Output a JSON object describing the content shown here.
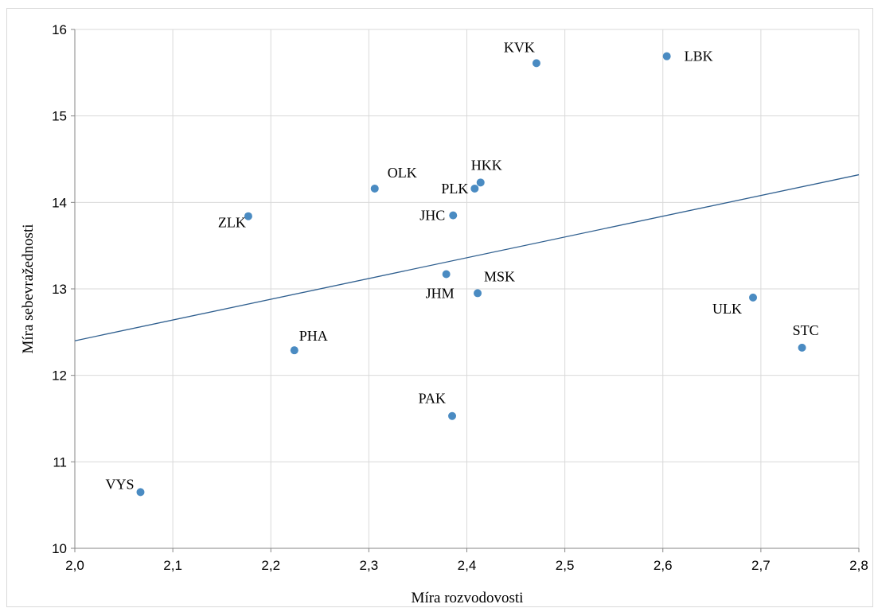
{
  "chart_data": {
    "type": "scatter",
    "title": "",
    "xlabel": "Míra rozvodovosti",
    "ylabel": "Míra sebevražednosti",
    "xlim": [
      2.0,
      2.8
    ],
    "ylim": [
      10,
      16
    ],
    "x_ticks": [
      2.0,
      2.1,
      2.2,
      2.3,
      2.4,
      2.5,
      2.6,
      2.7,
      2.8
    ],
    "x_tick_labels": [
      "2,0",
      "2,1",
      "2,2",
      "2,3",
      "2,4",
      "2,5",
      "2,6",
      "2,7",
      "2,8"
    ],
    "y_ticks": [
      10,
      11,
      12,
      13,
      14,
      15,
      16
    ],
    "y_tick_labels": [
      "10",
      "11",
      "12",
      "13",
      "14",
      "15",
      "16"
    ],
    "grid": true,
    "legend": "none",
    "marker_color": "#4a8bc2",
    "trendline_color": "#2f5f8f",
    "points": [
      {
        "label": "KVK",
        "x": 2.471,
        "y": 15.61
      },
      {
        "label": "LBK",
        "x": 2.604,
        "y": 15.69
      },
      {
        "label": "OLK",
        "x": 2.306,
        "y": 14.16
      },
      {
        "label": "HKK",
        "x": 2.414,
        "y": 14.23
      },
      {
        "label": "PLK",
        "x": 2.408,
        "y": 14.16
      },
      {
        "label": "JHC",
        "x": 2.386,
        "y": 13.85
      },
      {
        "label": "ZLK",
        "x": 2.177,
        "y": 13.84
      },
      {
        "label": "JHM",
        "x": 2.379,
        "y": 13.17
      },
      {
        "label": "MSK",
        "x": 2.411,
        "y": 12.95
      },
      {
        "label": "ULK",
        "x": 2.692,
        "y": 12.9
      },
      {
        "label": "STC",
        "x": 2.742,
        "y": 12.32
      },
      {
        "label": "PHA",
        "x": 2.224,
        "y": 12.29
      },
      {
        "label": "PAK",
        "x": 2.385,
        "y": 11.53
      },
      {
        "label": "VYS",
        "x": 2.067,
        "y": 10.65
      }
    ],
    "trendline": {
      "x": [
        2.0,
        2.8
      ],
      "y": [
        12.4,
        14.32
      ]
    }
  }
}
